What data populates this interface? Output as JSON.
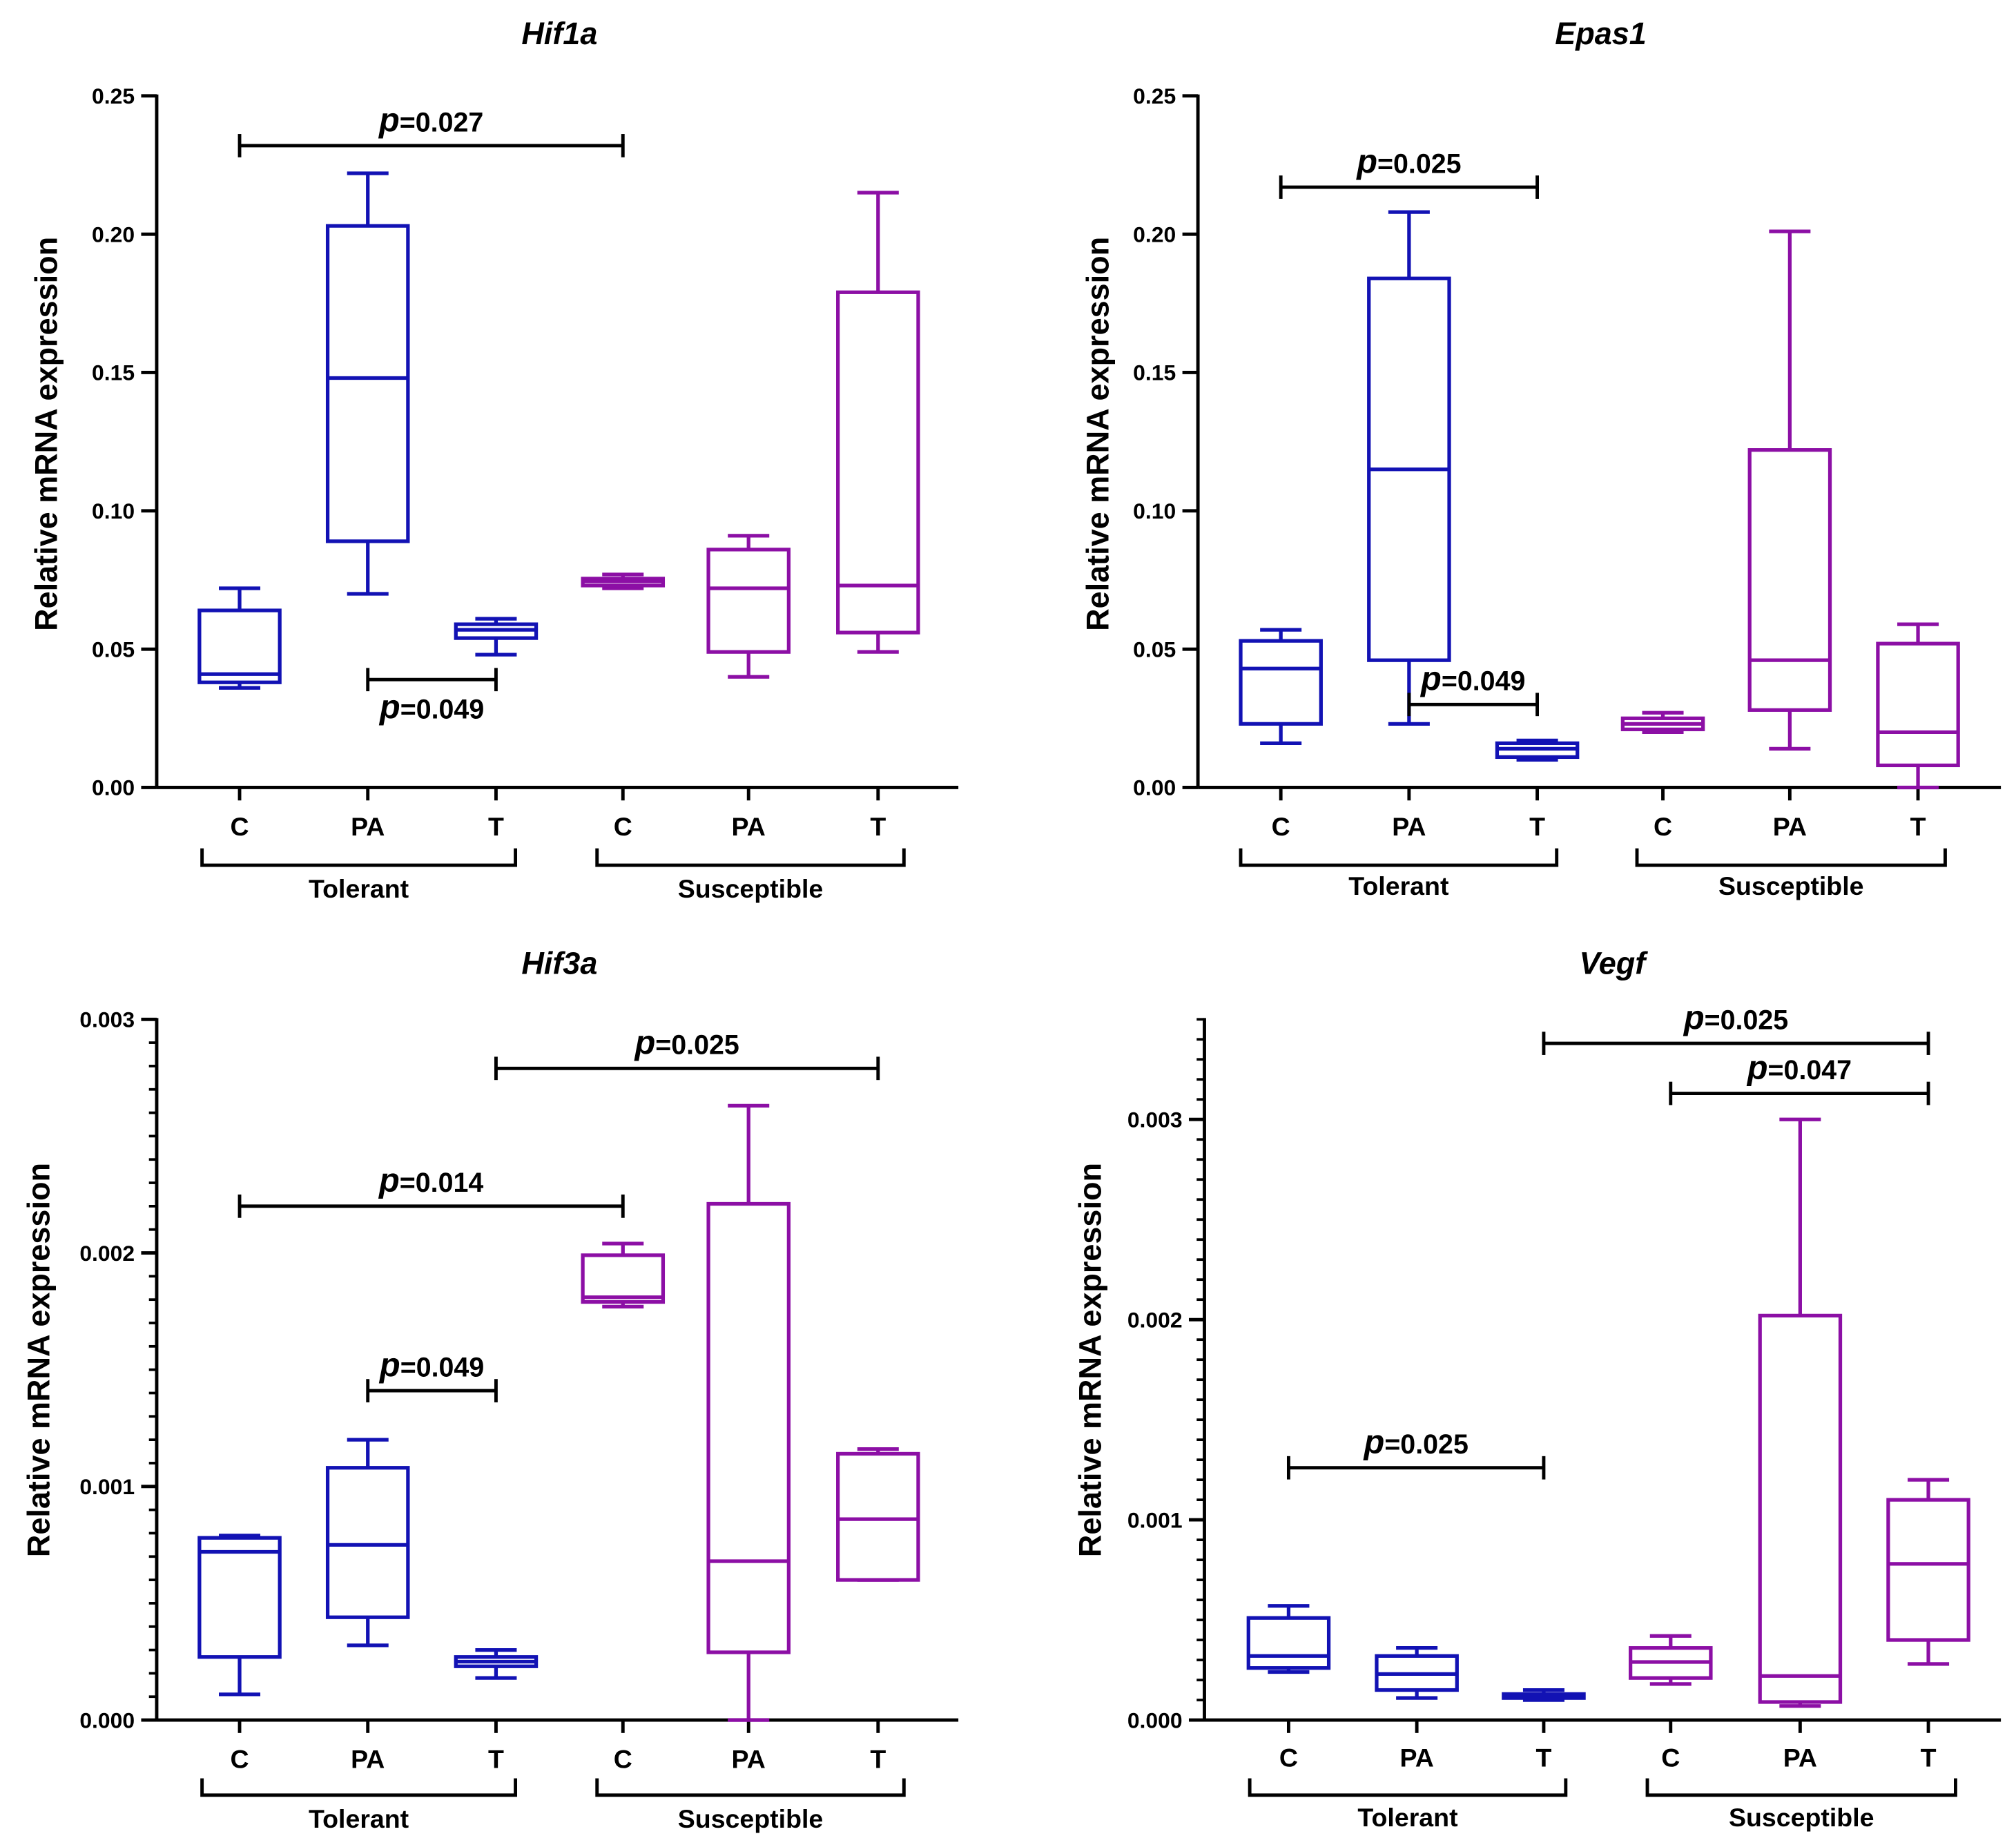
{
  "colors": {
    "tolerant": "#1212b4",
    "susceptible": "#8c0fa5",
    "axis": "#000000"
  },
  "chart_data": [
    {
      "type": "box",
      "title": "Hif1a",
      "ylabel": "Relative mRNA expression",
      "ylim": [
        0,
        0.25
      ],
      "yticks": [
        0.0,
        0.05,
        0.1,
        0.15,
        0.2,
        0.25
      ],
      "ytick_labels": [
        "0.00",
        "0.05",
        "0.10",
        "0.15",
        "0.20",
        "0.25"
      ],
      "minor_ticks": false,
      "categories": [
        "C",
        "PA",
        "T",
        "C",
        "PA",
        "T"
      ],
      "groups": [
        {
          "label": "Tolerant",
          "from": 0,
          "to": 2
        },
        {
          "label": "Susceptible",
          "from": 3,
          "to": 5
        }
      ],
      "boxes": [
        {
          "category": "C",
          "group": "Tolerant",
          "min": 0.036,
          "q1": 0.038,
          "median": 0.041,
          "q3": 0.064,
          "max": 0.072
        },
        {
          "category": "PA",
          "group": "Tolerant",
          "min": 0.07,
          "q1": 0.089,
          "median": 0.148,
          "q3": 0.203,
          "max": 0.222
        },
        {
          "category": "T",
          "group": "Tolerant",
          "min": 0.048,
          "q1": 0.054,
          "median": 0.057,
          "q3": 0.059,
          "max": 0.061
        },
        {
          "category": "C",
          "group": "Susceptible",
          "min": 0.072,
          "q1": 0.073,
          "median": 0.0745,
          "q3": 0.0755,
          "max": 0.077
        },
        {
          "category": "PA",
          "group": "Susceptible",
          "min": 0.04,
          "q1": 0.049,
          "median": 0.072,
          "q3": 0.086,
          "max": 0.091
        },
        {
          "category": "T",
          "group": "Susceptible",
          "min": 0.049,
          "q1": 0.056,
          "median": 0.073,
          "q3": 0.179,
          "max": 0.215
        }
      ],
      "significance": [
        {
          "from": 0,
          "to": 3,
          "y": 0.232,
          "label": "=0.027",
          "label_pos": "above"
        },
        {
          "from": 1,
          "to": 2,
          "y": 0.039,
          "label": "=0.049",
          "label_pos": "below"
        }
      ]
    },
    {
      "type": "box",
      "title": "Epas1",
      "ylabel": "Relative mRNA expression",
      "ylim": [
        0,
        0.25
      ],
      "yticks": [
        0.0,
        0.05,
        0.1,
        0.15,
        0.2,
        0.25
      ],
      "ytick_labels": [
        "0.00",
        "0.05",
        "0.10",
        "0.15",
        "0.20",
        "0.25"
      ],
      "minor_ticks": false,
      "categories": [
        "C",
        "PA",
        "T",
        "C",
        "PA",
        "T"
      ],
      "groups": [
        {
          "label": "Tolerant",
          "from": 0,
          "to": 2
        },
        {
          "label": "Susceptible",
          "from": 3,
          "to": 5
        }
      ],
      "boxes": [
        {
          "category": "C",
          "group": "Tolerant",
          "min": 0.016,
          "q1": 0.023,
          "median": 0.043,
          "q3": 0.053,
          "max": 0.057
        },
        {
          "category": "PA",
          "group": "Tolerant",
          "min": 0.023,
          "q1": 0.046,
          "median": 0.115,
          "q3": 0.184,
          "max": 0.208
        },
        {
          "category": "T",
          "group": "Tolerant",
          "min": 0.01,
          "q1": 0.011,
          "median": 0.014,
          "q3": 0.016,
          "max": 0.017
        },
        {
          "category": "C",
          "group": "Susceptible",
          "min": 0.02,
          "q1": 0.021,
          "median": 0.023,
          "q3": 0.025,
          "max": 0.027
        },
        {
          "category": "PA",
          "group": "Susceptible",
          "min": 0.014,
          "q1": 0.028,
          "median": 0.046,
          "q3": 0.122,
          "max": 0.201
        },
        {
          "category": "T",
          "group": "Susceptible",
          "min": 0.0,
          "q1": 0.008,
          "median": 0.02,
          "q3": 0.052,
          "max": 0.059
        }
      ],
      "significance": [
        {
          "from": 0,
          "to": 2,
          "y": 0.217,
          "label": "=0.025",
          "label_pos": "above"
        },
        {
          "from": 1,
          "to": 2,
          "y": 0.03,
          "label": "=0.049",
          "label_pos": "above"
        }
      ]
    },
    {
      "type": "box",
      "title": "Hif3a",
      "ylabel": "Relative mRNA expression",
      "ylim": [
        0,
        0.003
      ],
      "yticks": [
        0.0,
        0.001,
        0.002,
        0.003
      ],
      "ytick_labels": [
        "0.000",
        "0.001",
        "0.002",
        "0.003"
      ],
      "minor_ticks": true,
      "categories": [
        "C",
        "PA",
        "T",
        "C",
        "PA",
        "T"
      ],
      "groups": [
        {
          "label": "Tolerant",
          "from": 0,
          "to": 2
        },
        {
          "label": "Susceptible",
          "from": 3,
          "to": 5
        }
      ],
      "boxes": [
        {
          "category": "C",
          "group": "Tolerant",
          "min": 0.00011,
          "q1": 0.00027,
          "median": 0.00072,
          "q3": 0.00078,
          "max": 0.00079
        },
        {
          "category": "PA",
          "group": "Tolerant",
          "min": 0.00032,
          "q1": 0.00044,
          "median": 0.00075,
          "q3": 0.00108,
          "max": 0.0012
        },
        {
          "category": "T",
          "group": "Tolerant",
          "min": 0.00018,
          "q1": 0.00023,
          "median": 0.00025,
          "q3": 0.00027,
          "max": 0.0003
        },
        {
          "category": "C",
          "group": "Susceptible",
          "min": 0.00177,
          "q1": 0.00179,
          "median": 0.00181,
          "q3": 0.00199,
          "max": 0.00204
        },
        {
          "category": "PA",
          "group": "Susceptible",
          "min": 0.0,
          "q1": 0.00029,
          "median": 0.00068,
          "q3": 0.00221,
          "max": 0.00263
        },
        {
          "category": "T",
          "group": "Susceptible",
          "min": 0.0006,
          "q1": 0.0006,
          "median": 0.00086,
          "q3": 0.00114,
          "max": 0.00116
        }
      ],
      "significance": [
        {
          "from": 0,
          "to": 3,
          "y": 0.0022,
          "label": "=0.014",
          "label_pos": "above"
        },
        {
          "from": 1,
          "to": 2,
          "y": 0.00141,
          "label": "=0.049",
          "label_pos": "above"
        },
        {
          "from": 2,
          "to": 5,
          "y": 0.00279,
          "label": "=0.025",
          "label_pos": "above"
        }
      ]
    },
    {
      "type": "box",
      "title": "Vegf",
      "ylabel": "Relative mRNA expression",
      "ylim": [
        0,
        0.0035
      ],
      "yticks": [
        0.0,
        0.001,
        0.002,
        0.003
      ],
      "ytick_labels": [
        "0.000",
        "0.001",
        "0.002",
        "0.003"
      ],
      "minor_ticks": true,
      "categories": [
        "C",
        "PA",
        "T",
        "C",
        "PA",
        "T"
      ],
      "groups": [
        {
          "label": "Tolerant",
          "from": 0,
          "to": 2
        },
        {
          "label": "Susceptible",
          "from": 3,
          "to": 5
        }
      ],
      "boxes": [
        {
          "category": "C",
          "group": "Tolerant",
          "min": 0.00024,
          "q1": 0.00026,
          "median": 0.00032,
          "q3": 0.00051,
          "max": 0.00057
        },
        {
          "category": "PA",
          "group": "Tolerant",
          "min": 0.00011,
          "q1": 0.00015,
          "median": 0.00023,
          "q3": 0.00032,
          "max": 0.00036
        },
        {
          "category": "T",
          "group": "Tolerant",
          "min": 0.0001,
          "q1": 0.00011,
          "median": 0.00012,
          "q3": 0.00013,
          "max": 0.00015
        },
        {
          "category": "C",
          "group": "Susceptible",
          "min": 0.00018,
          "q1": 0.00021,
          "median": 0.00029,
          "q3": 0.00036,
          "max": 0.00042
        },
        {
          "category": "PA",
          "group": "Susceptible",
          "min": 7e-05,
          "q1": 9e-05,
          "median": 0.00022,
          "q3": 0.00202,
          "max": 0.003
        },
        {
          "category": "T",
          "group": "Susceptible",
          "min": 0.00028,
          "q1": 0.0004,
          "median": 0.00078,
          "q3": 0.0011,
          "max": 0.0012
        }
      ],
      "significance": [
        {
          "from": 0,
          "to": 2,
          "y": 0.00126,
          "label": "=0.025",
          "label_pos": "above"
        },
        {
          "from": 3,
          "to": 5,
          "y": 0.00313,
          "label": "=0.047",
          "label_pos": "above"
        },
        {
          "from": 2,
          "to": 5,
          "y": 0.00338,
          "label": "=0.025",
          "label_pos": "above"
        }
      ]
    }
  ]
}
